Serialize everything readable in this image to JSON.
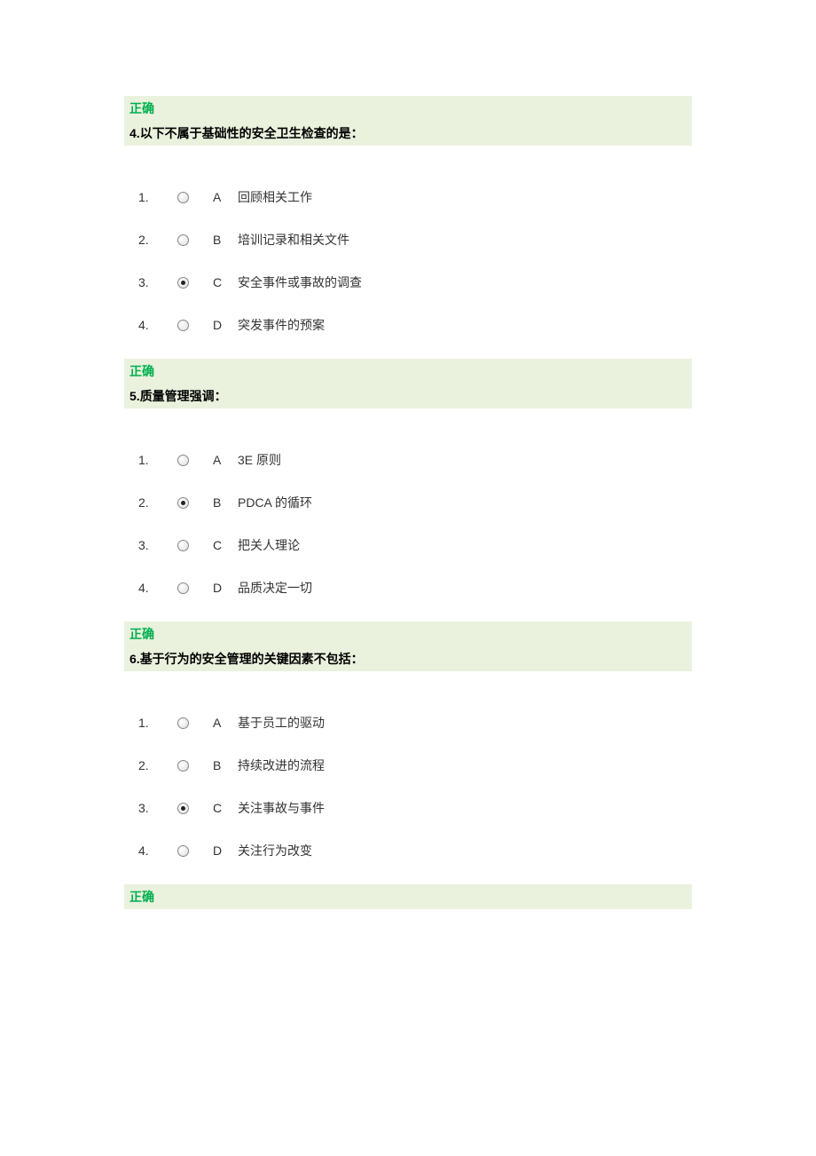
{
  "colors": {
    "status_text": "#00b050",
    "bar_bg": "#eaf1dd",
    "body_text": "#333333",
    "page_bg": "#ffffff"
  },
  "typography": {
    "title_fontsize": 14,
    "option_fontsize": 14,
    "font_family": "Microsoft YaHei / SimSun"
  },
  "status_label": "正确",
  "questions": [
    {
      "number": "4.",
      "title": "以下不属于基础性的安全卫生检查的是：",
      "before_status": true,
      "options": [
        {
          "num": "1.",
          "letter": "A",
          "text": "回顾相关工作",
          "selected": false
        },
        {
          "num": "2.",
          "letter": "B",
          "text": "培训记录和相关文件",
          "selected": false
        },
        {
          "num": "3.",
          "letter": "C",
          "text": "安全事件或事故的调查",
          "selected": true
        },
        {
          "num": "4.",
          "letter": "D",
          "text": " 突发事件的预案",
          "selected": false
        }
      ],
      "after_status": true
    },
    {
      "number": "5.",
      "title": "质量管理强调：",
      "before_status": false,
      "options": [
        {
          "num": "1.",
          "letter": "A",
          "text": " 3E 原则",
          "selected": false
        },
        {
          "num": "2.",
          "letter": "B",
          "text": " PDCA 的循环",
          "selected": true
        },
        {
          "num": "3.",
          "letter": "C",
          "text": " 把关人理论",
          "selected": false
        },
        {
          "num": "4.",
          "letter": "D",
          "text": " 品质决定一切",
          "selected": false
        }
      ],
      "after_status": true
    },
    {
      "number": "6.",
      "title": "基于行为的安全管理的关键因素不包括：",
      "before_status": false,
      "options": [
        {
          "num": "1.",
          "letter": "A",
          "text": " 基于员工的驱动",
          "selected": false
        },
        {
          "num": "2.",
          "letter": "B",
          "text": " 持续改进的流程",
          "selected": false
        },
        {
          "num": "3.",
          "letter": "C",
          "text": " 关注事故与事件",
          "selected": true
        },
        {
          "num": "4.",
          "letter": "D",
          "text": " 关注行为改变",
          "selected": false
        }
      ],
      "after_status": true
    }
  ]
}
